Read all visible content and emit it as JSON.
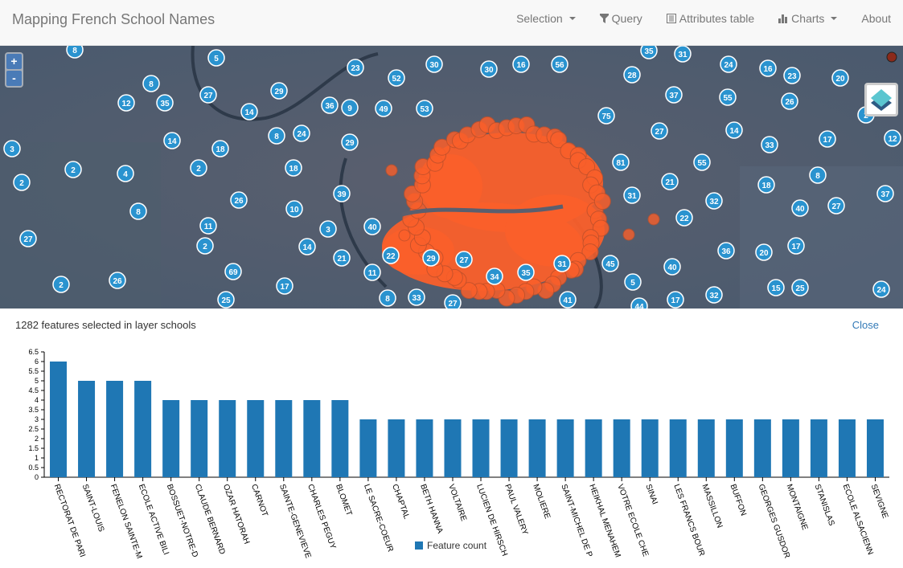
{
  "navbar": {
    "title": "Mapping French School Names",
    "items": [
      {
        "label": "Selection",
        "icon": "",
        "caret": true
      },
      {
        "label": "Query",
        "icon": "filter-icon",
        "caret": false
      },
      {
        "label": "Attributes table",
        "icon": "table-icon",
        "caret": false
      },
      {
        "label": "Charts",
        "icon": "bar-chart-icon",
        "caret": true
      },
      {
        "label": "About",
        "icon": "",
        "caret": false
      }
    ]
  },
  "map": {
    "zoom_in": "+",
    "zoom_out": "-",
    "cluster_color": "#2a93cf",
    "selection_color": "#fa5f2a",
    "clusters": [
      "8",
      "5",
      "23",
      "30",
      "30",
      "16",
      "56",
      "35",
      "31",
      "24",
      "16",
      "23",
      "20",
      "8",
      "52",
      "28",
      "12",
      "35",
      "27",
      "29",
      "36",
      "9",
      "49",
      "53",
      "37",
      "55",
      "26",
      "14",
      "75",
      "2",
      "3",
      "14",
      "18",
      "8",
      "24",
      "29",
      "27",
      "14",
      "33",
      "17",
      "12",
      "2",
      "4",
      "2",
      "18",
      "81",
      "55",
      "2",
      "8",
      "21",
      "18",
      "39",
      "26",
      "31",
      "32",
      "37",
      "8",
      "10",
      "40",
      "27",
      "11",
      "3",
      "40",
      "22",
      "27",
      "2",
      "14",
      "17",
      "36",
      "20",
      "21",
      "22",
      "29",
      "27",
      "31",
      "45",
      "40",
      "69",
      "11",
      "34",
      "35",
      "26",
      "2",
      "17",
      "5",
      "15",
      "25",
      "24",
      "32",
      "25",
      "8",
      "33",
      "27",
      "41",
      "17",
      "44"
    ]
  },
  "panel": {
    "title": "1282 features selected in layer schools",
    "close": "Close",
    "legend": "Feature count"
  },
  "chart_data": {
    "type": "bar",
    "title": "",
    "xlabel": "",
    "ylabel": "",
    "ylim": [
      0,
      6.5
    ],
    "yticks": [
      "0",
      "0.5",
      "1",
      "1.5",
      "2",
      "2.5",
      "3",
      "3.5",
      "4",
      "4.5",
      "5",
      "5.5",
      "6",
      "6.5"
    ],
    "categories": [
      "RECTORAT DE PARI",
      "SAINT-LOUIS",
      "FENELON SAINTE-M",
      "ECOLE ACTIVE BILI",
      "BOSSUET-NOTRE-D",
      "CLAUDE BERNARD",
      "OZAR HATORAH",
      "CARNOT",
      "SAINTE-GENEVIEVE",
      "CHARLES PEGUY",
      "BLOMET",
      "LE SACRE-COEUR",
      "CHAPTAL",
      "BETH HANNA",
      "VOLTAIRE",
      "LUCIEN DE HIRSCH",
      "PAUL VALERY",
      "MOLIERE",
      "SAINT-MICHEL DE P",
      "HEIKHAL MENAHEM",
      "VOTRE ECOLE CHE",
      "SINAI",
      "LES FRANCS BOUR",
      "MASSILLON",
      "BUFFON",
      "GEORGES GUSDOR",
      "MONTAIGNE",
      "STANISLAS",
      "ECOLE ALSACIENN",
      "SEVIGNE"
    ],
    "series": [
      {
        "name": "Feature count",
        "color": "#1f77b4",
        "values": [
          6,
          5,
          5,
          5,
          4,
          4,
          4,
          4,
          4,
          4,
          4,
          3,
          3,
          3,
          3,
          3,
          3,
          3,
          3,
          3,
          3,
          3,
          3,
          3,
          3,
          3,
          3,
          3,
          3,
          3
        ]
      }
    ]
  }
}
